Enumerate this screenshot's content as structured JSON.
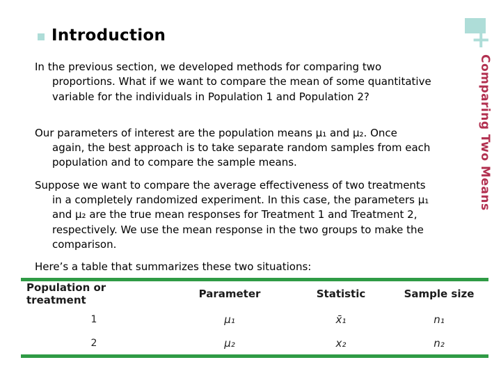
{
  "colors": {
    "accent_teal": "#aeddd8",
    "accent_red": "#b23050",
    "table_line_green": "#2f9b45"
  },
  "header": {
    "title": "Introduction",
    "bullet_icon": "teal-square"
  },
  "sidebar": {
    "plus_symbol": "+",
    "vertical_label": "Comparing Two Means"
  },
  "body": {
    "paragraphs": [
      {
        "lines": [
          "In the previous section, we developed methods for comparing two",
          "proportions. What if we want to compare the mean of some quantitative",
          "variable for the individuals in Population 1 and Population 2?"
        ]
      },
      {
        "lines": [
          "Our parameters of interest are the population means μ₁ and μ₂. Once",
          "again, the best approach is to take separate random samples from each",
          "population and to compare the sample means."
        ]
      },
      {
        "lines": [
          "Suppose we want to compare the average effectiveness of two treatments",
          "in a completely randomized experiment. In this case, the parameters μ₁",
          "and μ₂ are the  true mean responses for Treatment 1 and Treatment 2,",
          "respectively. We use the mean response in the two groups to make the",
          "comparison."
        ]
      },
      {
        "lines": [
          "Here’s a table that summarizes these two situations:"
        ]
      }
    ]
  },
  "table": {
    "headers": [
      "Population or treatment",
      "Parameter",
      "Statistic",
      "Sample size"
    ],
    "rows": [
      {
        "cells": [
          "1",
          "μ₁",
          "x̄₁",
          "n₁"
        ]
      },
      {
        "cells": [
          "2",
          "μ₂",
          "x₂",
          "n₂"
        ]
      }
    ]
  }
}
